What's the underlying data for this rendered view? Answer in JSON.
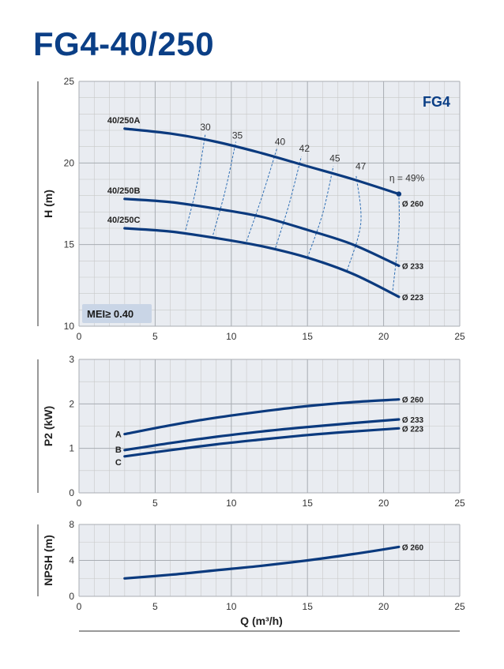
{
  "title": "FG4-40/250",
  "colors": {
    "curve": "#0b3a7e",
    "grid": "#c8c8c8",
    "plot_bg": "#e9ecf1",
    "title": "#0b3f86",
    "efficiency": "#2f6fb5",
    "mei_box": "#c9d5e6"
  },
  "chart_data": [
    {
      "type": "line",
      "title": "H (m)",
      "series_label": "FG4",
      "ylabel": "H (m)",
      "xlim": [
        0,
        25
      ],
      "ylim": [
        10,
        25
      ],
      "xticks": [
        0,
        5,
        10,
        15,
        20,
        25
      ],
      "yticks": [
        10,
        15,
        20,
        25
      ],
      "grid": true,
      "annotation": "MEI≥ 0.40",
      "series": [
        {
          "name": "40/250A",
          "diameter": "Ø 260",
          "x": [
            3,
            6,
            9,
            12,
            15,
            18,
            21
          ],
          "y": [
            22.1,
            21.8,
            21.3,
            20.6,
            19.8,
            19.0,
            18.1
          ]
        },
        {
          "name": "40/250B",
          "diameter": "Ø 233",
          "x": [
            3,
            6,
            9,
            12,
            15,
            18,
            21
          ],
          "y": [
            17.8,
            17.6,
            17.2,
            16.7,
            15.9,
            15.0,
            13.7
          ]
        },
        {
          "name": "40/250C",
          "diameter": "Ø 223",
          "x": [
            3,
            6,
            9,
            12,
            15,
            18,
            21
          ],
          "y": [
            16.0,
            15.8,
            15.4,
            14.9,
            14.2,
            13.2,
            11.8
          ]
        }
      ],
      "efficiency_label": "η = 49%",
      "efficiency_curves": [
        {
          "label": "30",
          "x": [
            7.0,
            7.7,
            8.3
          ],
          "y": [
            15.9,
            18.5,
            21.8
          ]
        },
        {
          "label": "35",
          "x": [
            8.8,
            9.6,
            10.3
          ],
          "y": [
            15.6,
            18.3,
            21.3
          ]
        },
        {
          "label": "40",
          "x": [
            11.0,
            12.0,
            13.0
          ],
          "y": [
            15.2,
            17.9,
            20.9
          ]
        },
        {
          "label": "42",
          "x": [
            12.9,
            13.8,
            14.6
          ],
          "y": [
            14.8,
            17.5,
            20.4
          ]
        },
        {
          "label": "45",
          "x": [
            15.0,
            16.0,
            16.7
          ],
          "y": [
            14.2,
            16.9,
            19.8
          ]
        },
        {
          "label": "47",
          "x": [
            17.6,
            18.5,
            18.2
          ],
          "y": [
            13.4,
            16.3,
            19.2
          ]
        },
        {
          "label": "49",
          "x": [
            20.6,
            21.0,
            21.0
          ],
          "y": [
            12.2,
            15.8,
            18.1
          ]
        }
      ],
      "efficiency_label_positions": [
        {
          "label": "30",
          "x": 8.3,
          "y": 22.0
        },
        {
          "label": "35",
          "x": 10.4,
          "y": 21.5
        },
        {
          "label": "40",
          "x": 13.2,
          "y": 21.1
        },
        {
          "label": "42",
          "x": 14.8,
          "y": 20.7
        },
        {
          "label": "45",
          "x": 16.8,
          "y": 20.1
        },
        {
          "label": "47",
          "x": 18.5,
          "y": 19.6
        }
      ]
    },
    {
      "type": "line",
      "ylabel": "P2 (kW)",
      "xlim": [
        0,
        25
      ],
      "ylim": [
        0,
        3
      ],
      "xticks": [
        0,
        5,
        10,
        15,
        20,
        25
      ],
      "yticks": [
        0,
        1,
        2,
        3
      ],
      "grid": true,
      "series": [
        {
          "name": "A",
          "diameter": "Ø 260",
          "x": [
            3,
            6,
            9,
            12,
            15,
            18,
            21
          ],
          "y": [
            1.32,
            1.52,
            1.69,
            1.83,
            1.95,
            2.04,
            2.1
          ]
        },
        {
          "name": "B",
          "diameter": "Ø 233",
          "x": [
            3,
            6,
            9,
            12,
            15,
            18,
            21
          ],
          "y": [
            0.96,
            1.12,
            1.26,
            1.38,
            1.48,
            1.57,
            1.65
          ]
        },
        {
          "name": "C",
          "diameter": "Ø 223",
          "x": [
            3,
            6,
            9,
            12,
            15,
            18,
            21
          ],
          "y": [
            0.82,
            0.96,
            1.09,
            1.2,
            1.3,
            1.38,
            1.45
          ]
        }
      ]
    },
    {
      "type": "line",
      "ylabel": "NPSH (m)",
      "xlabel": "Q (m³/h)",
      "xlim": [
        0,
        25
      ],
      "ylim": [
        0,
        8
      ],
      "xticks": [
        0,
        5,
        10,
        15,
        20,
        25
      ],
      "yticks": [
        0,
        4,
        8
      ],
      "grid": true,
      "series": [
        {
          "name": "NPSH",
          "diameter": "Ø 260",
          "x": [
            3,
            6,
            9,
            12,
            15,
            18,
            21
          ],
          "y": [
            2.0,
            2.4,
            2.9,
            3.4,
            4.0,
            4.7,
            5.5
          ]
        }
      ]
    }
  ]
}
